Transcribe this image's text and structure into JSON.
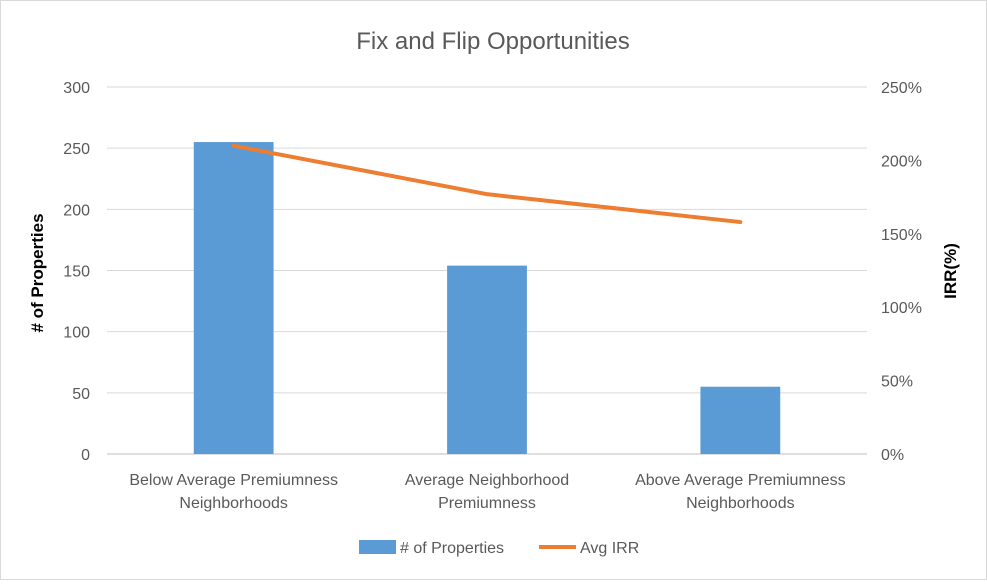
{
  "chart_data": {
    "type": "bar",
    "title": "Fix and Flip  Opportunities",
    "categories": [
      [
        "Below Average  Premiumness",
        "Neighborhoods"
      ],
      [
        "Average  Neighborhood",
        "Premiumness"
      ],
      [
        "Above Average  Premiumness",
        "Neighborhoods"
      ]
    ],
    "ylabel": "# of Properties",
    "y2label": "IRR(%)",
    "ylim": [
      0,
      300
    ],
    "y2lim": [
      0,
      2.5
    ],
    "yticks": [
      "0",
      "50",
      "100",
      "150",
      "200",
      "250",
      "300"
    ],
    "y2ticks": [
      "0%",
      "50%",
      "100%",
      "150%",
      "200%",
      "250%"
    ],
    "grid": true,
    "legend_position": "bottom",
    "series": [
      {
        "name": "# of Properties",
        "type": "bar",
        "axis": "left",
        "color": "#5b9bd5",
        "values": [
          255,
          154,
          55
        ]
      },
      {
        "name": "Avg IRR",
        "type": "line",
        "axis": "right",
        "color": "#ed7d31",
        "values": [
          2.1,
          1.77,
          1.58
        ]
      }
    ]
  }
}
